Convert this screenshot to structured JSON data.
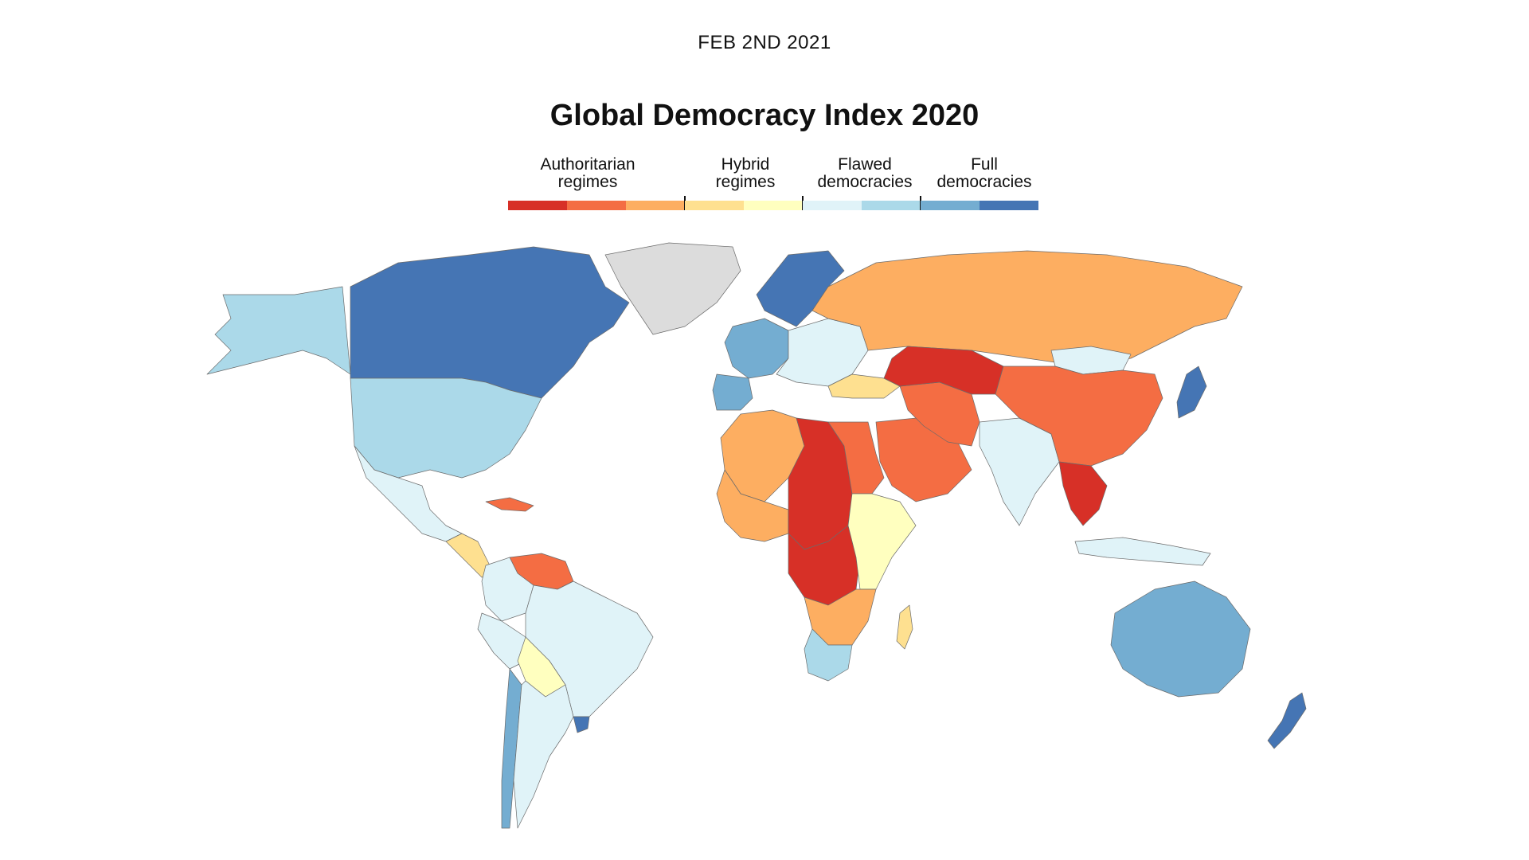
{
  "header": {
    "date": "FEB 2ND 2021",
    "title": "Global Democracy Index 2020"
  },
  "legend": {
    "categories": [
      {
        "label": "Authoritarian\nregimes",
        "colors": [
          "#d73027",
          "#f46d43",
          "#fdae61"
        ]
      },
      {
        "label": "Hybrid\nregimes",
        "colors": [
          "#fee090",
          "#ffffbf"
        ]
      },
      {
        "label": "Flawed\ndemocracies",
        "colors": [
          "#e0f3f8",
          "#abd9e9"
        ]
      },
      {
        "label": "Full\ndemocracies",
        "colors": [
          "#74add1",
          "#4575b4"
        ]
      }
    ]
  },
  "map_data": {
    "type": "choropleth",
    "palette": {
      "authoritarian_low": "#d73027",
      "authoritarian_mid": "#f46d43",
      "authoritarian_high": "#fdae61",
      "hybrid_low": "#fee090",
      "hybrid_high": "#ffffbf",
      "flawed_low": "#e0f3f8",
      "flawed_high": "#abd9e9",
      "full_low": "#74add1",
      "full_high": "#4575b4",
      "no_data": "#dcdcdc"
    },
    "regions": [
      {
        "id": "canada",
        "category": "full_high"
      },
      {
        "id": "alaska",
        "category": "flawed_high"
      },
      {
        "id": "greenland",
        "category": "no_data"
      },
      {
        "id": "usa",
        "category": "flawed_high"
      },
      {
        "id": "mexico",
        "category": "flawed_low"
      },
      {
        "id": "central-america",
        "category": "hybrid_low"
      },
      {
        "id": "cuba",
        "category": "authoritarian_mid"
      },
      {
        "id": "venezuela",
        "category": "authoritarian_mid"
      },
      {
        "id": "colombia",
        "category": "flawed_low"
      },
      {
        "id": "brazil",
        "category": "flawed_low"
      },
      {
        "id": "peru",
        "category": "flawed_low"
      },
      {
        "id": "bolivia",
        "category": "hybrid_high"
      },
      {
        "id": "chile",
        "category": "full_low"
      },
      {
        "id": "argentina",
        "category": "flawed_low"
      },
      {
        "id": "uruguay",
        "category": "full_high"
      },
      {
        "id": "scandinavia",
        "category": "full_high"
      },
      {
        "id": "western-europe",
        "category": "full_low"
      },
      {
        "id": "iberia",
        "category": "full_low"
      },
      {
        "id": "eastern-europe",
        "category": "flawed_low"
      },
      {
        "id": "russia",
        "category": "authoritarian_high"
      },
      {
        "id": "turkey",
        "category": "hybrid_low"
      },
      {
        "id": "north-africa",
        "category": "authoritarian_high"
      },
      {
        "id": "libya-chad-sudan",
        "category": "authoritarian_low"
      },
      {
        "id": "egypt",
        "category": "authoritarian_mid"
      },
      {
        "id": "west-africa",
        "category": "authoritarian_high"
      },
      {
        "id": "central-africa",
        "category": "authoritarian_low"
      },
      {
        "id": "east-africa",
        "category": "hybrid_high"
      },
      {
        "id": "southern-africa",
        "category": "authoritarian_high"
      },
      {
        "id": "south-africa",
        "category": "flawed_high"
      },
      {
        "id": "madagascar",
        "category": "hybrid_low"
      },
      {
        "id": "arabia",
        "category": "authoritarian_mid"
      },
      {
        "id": "iran",
        "category": "authoritarian_mid"
      },
      {
        "id": "central-asia",
        "category": "authoritarian_low"
      },
      {
        "id": "india",
        "category": "flawed_low"
      },
      {
        "id": "china",
        "category": "authoritarian_mid"
      },
      {
        "id": "mongolia",
        "category": "flawed_low"
      },
      {
        "id": "southeast-asia",
        "category": "authoritarian_low"
      },
      {
        "id": "japan",
        "category": "full_high"
      },
      {
        "id": "indonesia",
        "category": "flawed_low"
      },
      {
        "id": "australia",
        "category": "full_low"
      },
      {
        "id": "new-zealand",
        "category": "full_high"
      }
    ]
  }
}
